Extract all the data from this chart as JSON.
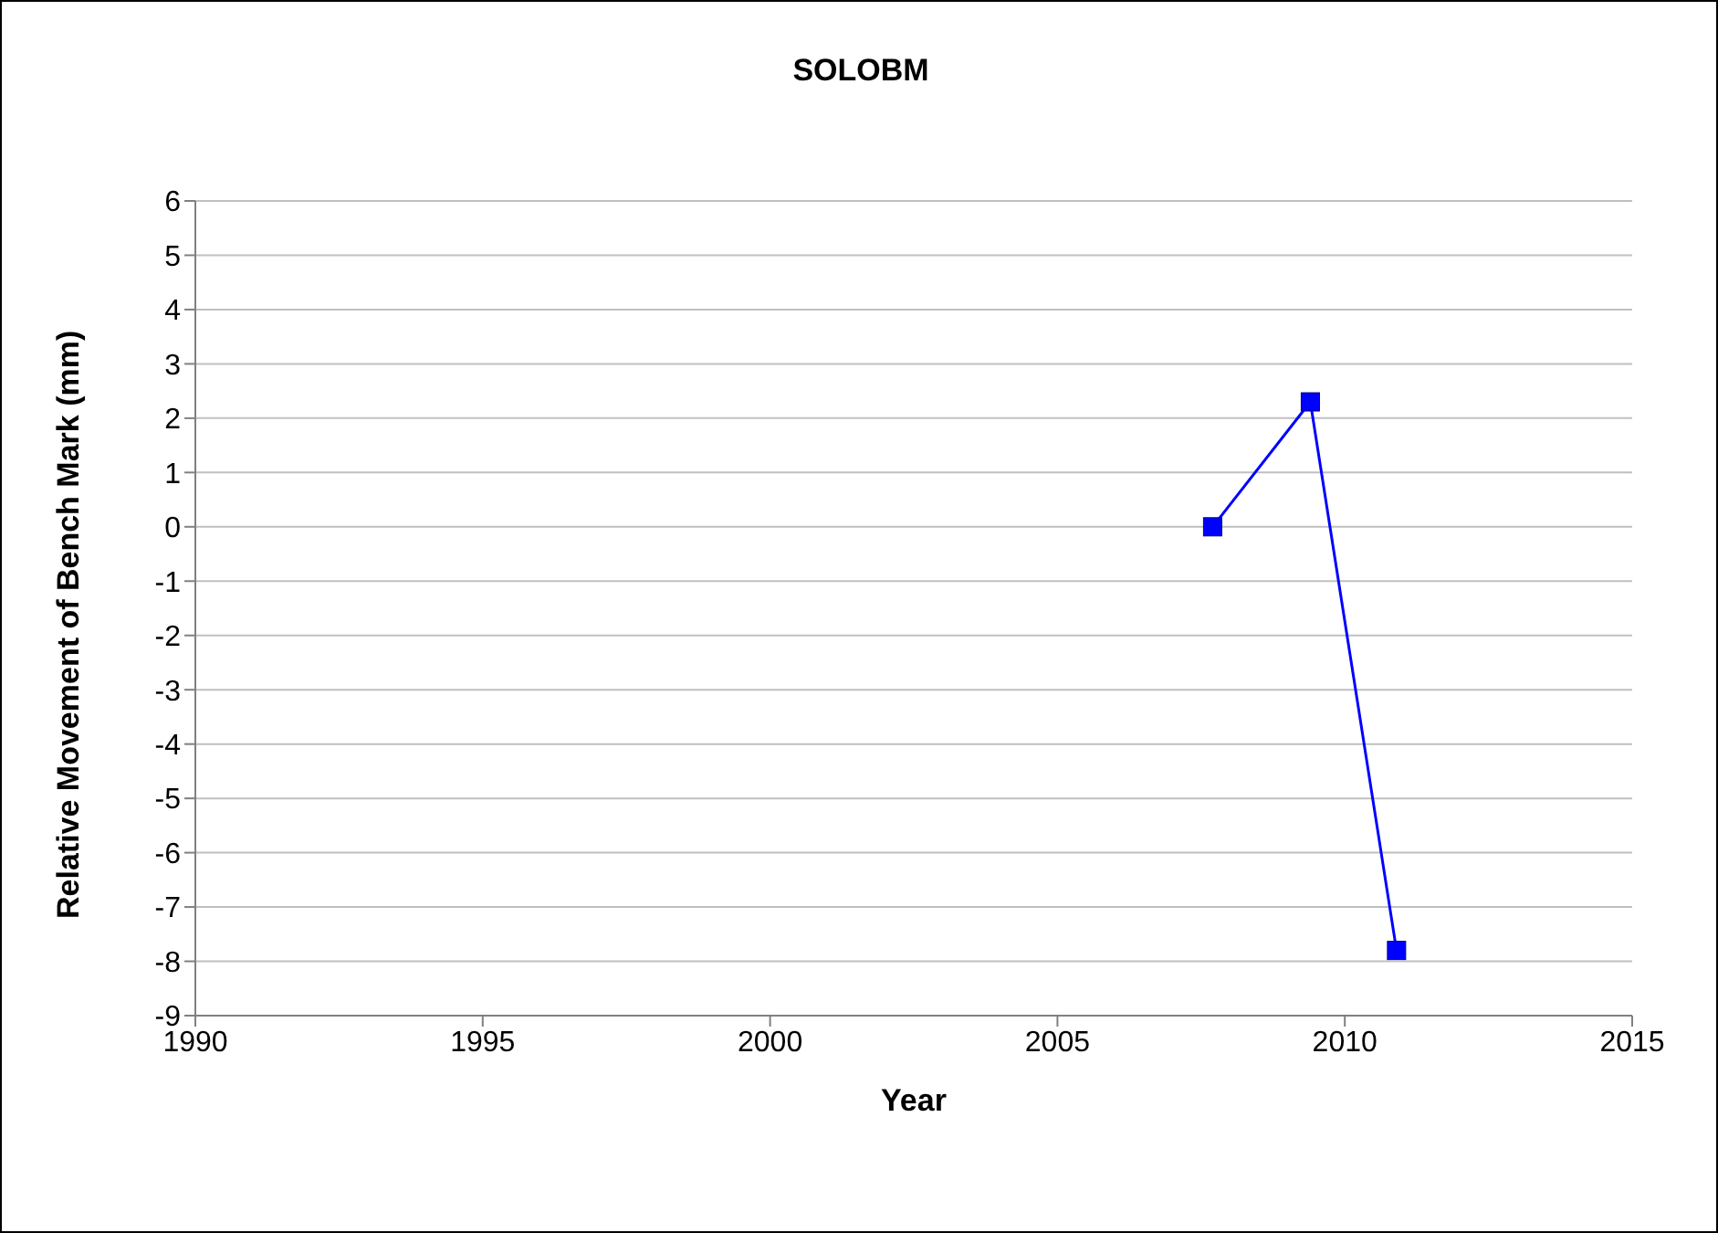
{
  "chart_data": {
    "type": "line",
    "title": "SOLOBM",
    "xlabel": "Year",
    "ylabel": "Relative Movement of Bench Mark (mm)",
    "x": [
      2007.7,
      2009.4,
      2010.9
    ],
    "series": [
      {
        "color": "#0000ff",
        "values": [
          0,
          2.3,
          -7.8
        ]
      }
    ],
    "xlim": [
      1990,
      2015
    ],
    "xticks": [
      1990,
      1995,
      2000,
      2005,
      2010,
      2015
    ],
    "ylim": [
      -9,
      6
    ],
    "yticks": [
      -9,
      -8,
      -7,
      -6,
      -5,
      -4,
      -3,
      -2,
      -1,
      0,
      1,
      2,
      3,
      4,
      5,
      6
    ],
    "grid": "y",
    "legend": false,
    "marker": "square",
    "line_style": "solid"
  }
}
